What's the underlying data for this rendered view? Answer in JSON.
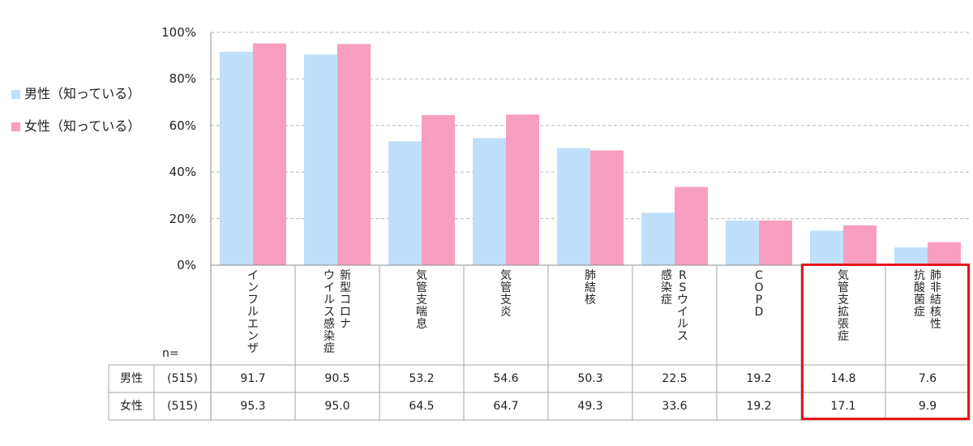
{
  "chart_data": {
    "type": "bar",
    "categories": [
      "インフルエンザ",
      "新型コロナウイルス感染症",
      "気管支喘息",
      "気管支炎",
      "肺結核",
      "RSウイルス感染症",
      "COPD",
      "気管支拡張症",
      "肺非結核性抗酸菌症"
    ],
    "category_lines": [
      [
        "インフルエンザ"
      ],
      [
        "新型コロナ",
        "ウイルス感染症"
      ],
      [
        "気管支喘息"
      ],
      [
        "気管支炎"
      ],
      [
        "肺結核"
      ],
      [
        "RSウイルス",
        "感染症"
      ],
      [
        "COPD"
      ],
      [
        "気管支拡張症"
      ],
      [
        "肺非結核性",
        "抗酸菌症"
      ]
    ],
    "series": [
      {
        "name": "男性（知っている）",
        "color": "#bfdffa",
        "values": [
          91.7,
          90.5,
          53.2,
          54.6,
          50.3,
          22.5,
          19.2,
          14.8,
          7.6
        ]
      },
      {
        "name": "女性（知っている）",
        "color": "#f89ec0",
        "values": [
          95.3,
          95.0,
          64.5,
          64.7,
          49.3,
          33.6,
          19.2,
          17.1,
          9.9
        ]
      }
    ],
    "y_ticks": [
      "0%",
      "20%",
      "40%",
      "60%",
      "80%",
      "100%"
    ],
    "ylim": [
      0,
      100
    ],
    "grid": true,
    "legend_position": "left",
    "table": {
      "n_label": "n=",
      "rows": [
        {
          "label": "男性",
          "n": "(515)",
          "values": [
            "91.7",
            "90.5",
            "53.2",
            "54.6",
            "50.3",
            "22.5",
            "19.2",
            "14.8",
            "7.6"
          ]
        },
        {
          "label": "女性",
          "n": "(515)",
          "values": [
            "95.3",
            "95.0",
            "64.5",
            "64.7",
            "49.3",
            "33.6",
            "19.2",
            "17.1",
            "9.9"
          ]
        }
      ]
    },
    "highlight_color": "#e8141a",
    "highlighted_categories": [
      "気管支拡張症",
      "肺非結核性抗酸菌症"
    ]
  }
}
